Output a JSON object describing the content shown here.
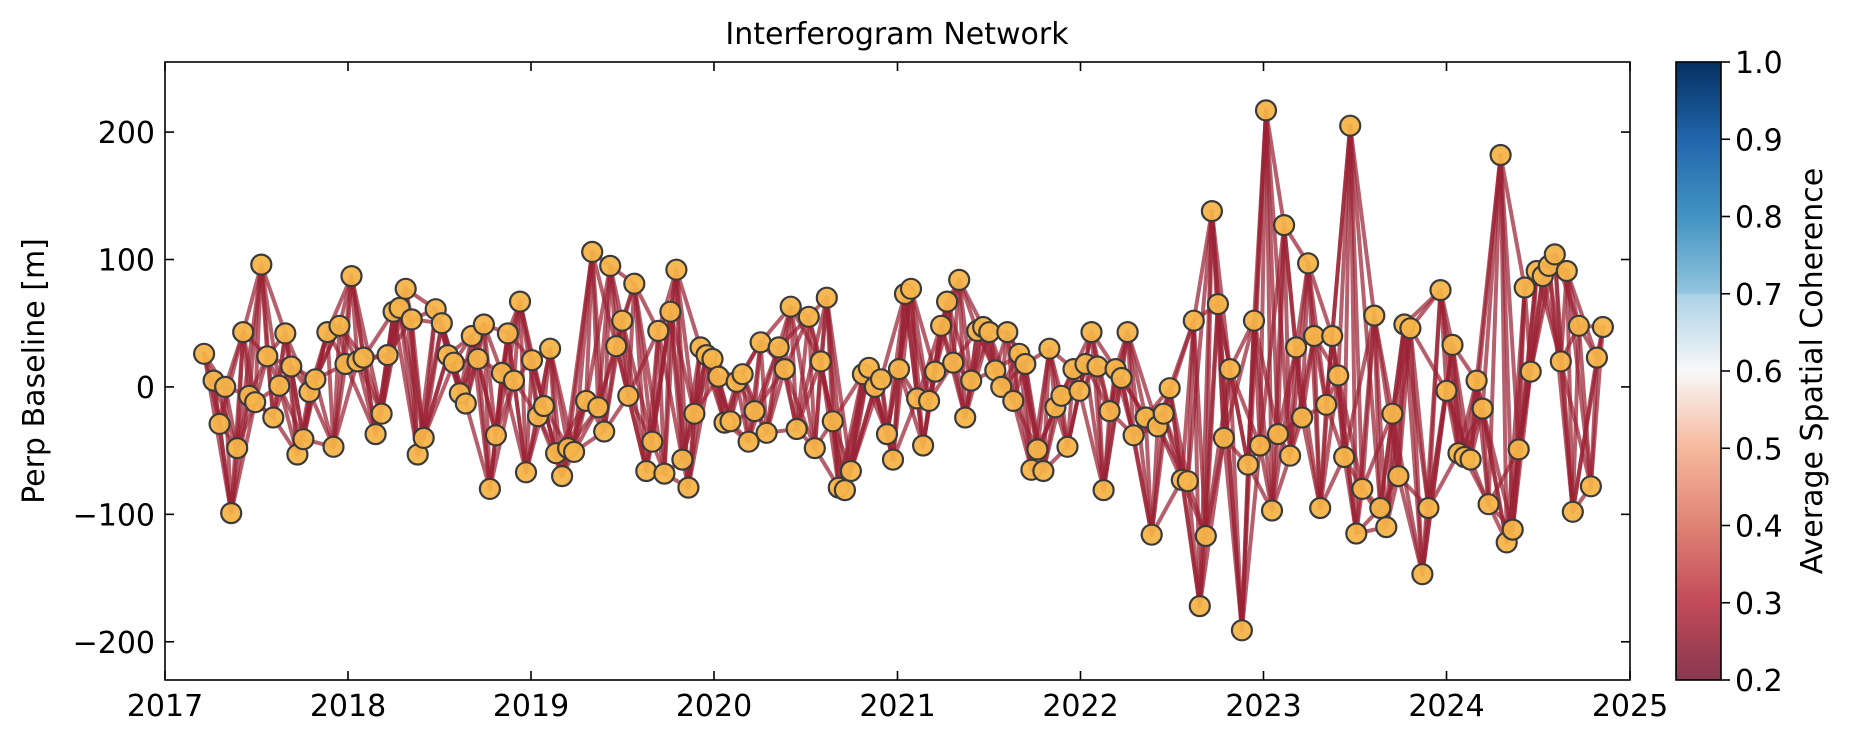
{
  "chart_data": {
    "type": "scatter",
    "title": "Interferogram Network",
    "xlabel": "",
    "ylabel": "Perp Baseline [m]",
    "x_ticks": [
      "2017",
      "2018",
      "2019",
      "2020",
      "2021",
      "2022",
      "2023",
      "2024",
      "2025"
    ],
    "y_ticks": [
      "200",
      "100",
      "0",
      "−100",
      "−200"
    ],
    "xlim": [
      "2017-01-01",
      "2025-01-01"
    ],
    "ylim": [
      -230,
      255
    ],
    "grid": false,
    "colorbar": {
      "label": "Average Spatial Coherence",
      "range": [
        0.2,
        1.0
      ],
      "ticks": [
        "1.0",
        "0.9",
        "0.8",
        "0.7",
        "0.6",
        "0.5",
        "0.4",
        "0.3",
        "0.2"
      ],
      "colormap": "RdBu",
      "masked_above": 0.7
    },
    "colors": {
      "node_fill": "#f6b44a",
      "node_edge": "#3a3a3a",
      "edge_color": "#9b2335"
    },
    "acquisitions": [
      {
        "date": "2017-03-20",
        "bperp": 26
      },
      {
        "date": "2017-04-08",
        "bperp": 5
      },
      {
        "date": "2017-04-20",
        "bperp": -29
      },
      {
        "date": "2017-05-01",
        "bperp": 0
      },
      {
        "date": "2017-05-13",
        "bperp": -99
      },
      {
        "date": "2017-05-25",
        "bperp": -48
      },
      {
        "date": "2017-06-06",
        "bperp": 43
      },
      {
        "date": "2017-06-18",
        "bperp": -7
      },
      {
        "date": "2017-06-30",
        "bperp": -12
      },
      {
        "date": "2017-07-12",
        "bperp": 96
      },
      {
        "date": "2017-07-24",
        "bperp": 24
      },
      {
        "date": "2017-08-05",
        "bperp": -24
      },
      {
        "date": "2017-08-17",
        "bperp": 1
      },
      {
        "date": "2017-08-29",
        "bperp": 42
      },
      {
        "date": "2017-09-10",
        "bperp": 16
      },
      {
        "date": "2017-09-22",
        "bperp": -53
      },
      {
        "date": "2017-10-04",
        "bperp": -41
      },
      {
        "date": "2017-10-16",
        "bperp": -4
      },
      {
        "date": "2017-10-28",
        "bperp": 6
      },
      {
        "date": "2017-11-21",
        "bperp": 43
      },
      {
        "date": "2017-12-03",
        "bperp": -47
      },
      {
        "date": "2017-12-15",
        "bperp": 48
      },
      {
        "date": "2017-12-27",
        "bperp": 18
      },
      {
        "date": "2018-01-08",
        "bperp": 87
      },
      {
        "date": "2018-01-20",
        "bperp": 20
      },
      {
        "date": "2018-02-01",
        "bperp": 23
      },
      {
        "date": "2018-02-25",
        "bperp": -37
      },
      {
        "date": "2018-03-09",
        "bperp": -21
      },
      {
        "date": "2018-03-21",
        "bperp": 25
      },
      {
        "date": "2018-04-02",
        "bperp": 59
      },
      {
        "date": "2018-04-14",
        "bperp": 62
      },
      {
        "date": "2018-04-26",
        "bperp": 77
      },
      {
        "date": "2018-05-08",
        "bperp": 53
      },
      {
        "date": "2018-05-20",
        "bperp": -53
      },
      {
        "date": "2018-06-01",
        "bperp": -40
      },
      {
        "date": "2018-06-25",
        "bperp": 61
      },
      {
        "date": "2018-07-07",
        "bperp": 50
      },
      {
        "date": "2018-07-19",
        "bperp": 25
      },
      {
        "date": "2018-07-31",
        "bperp": 19
      },
      {
        "date": "2018-08-12",
        "bperp": -5
      },
      {
        "date": "2018-08-24",
        "bperp": -13
      },
      {
        "date": "2018-09-05",
        "bperp": 40
      },
      {
        "date": "2018-09-17",
        "bperp": 22
      },
      {
        "date": "2018-09-29",
        "bperp": 49
      },
      {
        "date": "2018-10-11",
        "bperp": -80
      },
      {
        "date": "2018-10-23",
        "bperp": -38
      },
      {
        "date": "2018-11-04",
        "bperp": 11
      },
      {
        "date": "2018-11-16",
        "bperp": 42
      },
      {
        "date": "2018-11-28",
        "bperp": 5
      },
      {
        "date": "2018-12-10",
        "bperp": 67
      },
      {
        "date": "2018-12-22",
        "bperp": -67
      },
      {
        "date": "2019-01-03",
        "bperp": 21
      },
      {
        "date": "2019-01-15",
        "bperp": -23
      },
      {
        "date": "2019-01-27",
        "bperp": -15
      },
      {
        "date": "2019-02-08",
        "bperp": 30
      },
      {
        "date": "2019-02-20",
        "bperp": -52
      },
      {
        "date": "2019-03-04",
        "bperp": -70
      },
      {
        "date": "2019-03-16",
        "bperp": -48
      },
      {
        "date": "2019-03-28",
        "bperp": -51
      },
      {
        "date": "2019-04-21",
        "bperp": -11
      },
      {
        "date": "2019-05-03",
        "bperp": 106
      },
      {
        "date": "2019-05-15",
        "bperp": -16
      },
      {
        "date": "2019-05-27",
        "bperp": -35
      },
      {
        "date": "2019-06-08",
        "bperp": 95
      },
      {
        "date": "2019-06-20",
        "bperp": 32
      },
      {
        "date": "2019-07-02",
        "bperp": 52
      },
      {
        "date": "2019-07-14",
        "bperp": -7
      },
      {
        "date": "2019-07-26",
        "bperp": 81
      },
      {
        "date": "2019-08-19",
        "bperp": -66
      },
      {
        "date": "2019-08-31",
        "bperp": -43
      },
      {
        "date": "2019-09-12",
        "bperp": 44
      },
      {
        "date": "2019-09-24",
        "bperp": -68
      },
      {
        "date": "2019-10-06",
        "bperp": 59
      },
      {
        "date": "2019-10-18",
        "bperp": 92
      },
      {
        "date": "2019-10-30",
        "bperp": -57
      },
      {
        "date": "2019-11-11",
        "bperp": -79
      },
      {
        "date": "2019-11-23",
        "bperp": -21
      },
      {
        "date": "2019-12-05",
        "bperp": 31
      },
      {
        "date": "2019-12-17",
        "bperp": 25
      },
      {
        "date": "2019-12-29",
        "bperp": 22
      },
      {
        "date": "2020-01-10",
        "bperp": 8
      },
      {
        "date": "2020-01-22",
        "bperp": -28
      },
      {
        "date": "2020-02-03",
        "bperp": -27
      },
      {
        "date": "2020-02-15",
        "bperp": 4
      },
      {
        "date": "2020-02-27",
        "bperp": 10
      },
      {
        "date": "2020-03-10",
        "bperp": -43
      },
      {
        "date": "2020-03-22",
        "bperp": -19
      },
      {
        "date": "2020-04-03",
        "bperp": 35
      },
      {
        "date": "2020-04-15",
        "bperp": -36
      },
      {
        "date": "2020-05-09",
        "bperp": 31
      },
      {
        "date": "2020-05-21",
        "bperp": 14
      },
      {
        "date": "2020-06-02",
        "bperp": 63
      },
      {
        "date": "2020-06-14",
        "bperp": -33
      },
      {
        "date": "2020-07-08",
        "bperp": 55
      },
      {
        "date": "2020-07-20",
        "bperp": -48
      },
      {
        "date": "2020-08-01",
        "bperp": 20
      },
      {
        "date": "2020-08-13",
        "bperp": 70
      },
      {
        "date": "2020-08-25",
        "bperp": -27
      },
      {
        "date": "2020-09-06",
        "bperp": -79
      },
      {
        "date": "2020-09-18",
        "bperp": -81
      },
      {
        "date": "2020-09-30",
        "bperp": -66
      },
      {
        "date": "2020-10-24",
        "bperp": 10
      },
      {
        "date": "2020-11-05",
        "bperp": 15
      },
      {
        "date": "2020-11-17",
        "bperp": 0
      },
      {
        "date": "2020-11-29",
        "bperp": 6
      },
      {
        "date": "2020-12-11",
        "bperp": -37
      },
      {
        "date": "2020-12-23",
        "bperp": -57
      },
      {
        "date": "2021-01-04",
        "bperp": 14
      },
      {
        "date": "2021-01-16",
        "bperp": 73
      },
      {
        "date": "2021-01-28",
        "bperp": 77
      },
      {
        "date": "2021-02-09",
        "bperp": -9
      },
      {
        "date": "2021-02-21",
        "bperp": -46
      },
      {
        "date": "2021-03-05",
        "bperp": -11
      },
      {
        "date": "2021-03-17",
        "bperp": 12
      },
      {
        "date": "2021-03-29",
        "bperp": 48
      },
      {
        "date": "2021-04-10",
        "bperp": 67
      },
      {
        "date": "2021-04-22",
        "bperp": 19
      },
      {
        "date": "2021-05-04",
        "bperp": 84
      },
      {
        "date": "2021-05-16",
        "bperp": -24
      },
      {
        "date": "2021-05-28",
        "bperp": 5
      },
      {
        "date": "2021-06-09",
        "bperp": 44
      },
      {
        "date": "2021-06-21",
        "bperp": 47
      },
      {
        "date": "2021-07-03",
        "bperp": 43
      },
      {
        "date": "2021-07-15",
        "bperp": 13
      },
      {
        "date": "2021-07-27",
        "bperp": 0
      },
      {
        "date": "2021-08-08",
        "bperp": 43
      },
      {
        "date": "2021-08-20",
        "bperp": -11
      },
      {
        "date": "2021-09-01",
        "bperp": 26
      },
      {
        "date": "2021-09-13",
        "bperp": 18
      },
      {
        "date": "2021-09-25",
        "bperp": -65
      },
      {
        "date": "2021-10-07",
        "bperp": -49
      },
      {
        "date": "2021-10-19",
        "bperp": -66
      },
      {
        "date": "2021-10-31",
        "bperp": 30
      },
      {
        "date": "2021-11-12",
        "bperp": -16
      },
      {
        "date": "2021-11-24",
        "bperp": -7
      },
      {
        "date": "2021-12-06",
        "bperp": -47
      },
      {
        "date": "2021-12-18",
        "bperp": 14
      },
      {
        "date": "2021-12-30",
        "bperp": -3
      },
      {
        "date": "2022-01-11",
        "bperp": 18
      },
      {
        "date": "2022-01-23",
        "bperp": 43
      },
      {
        "date": "2022-02-04",
        "bperp": 16
      },
      {
        "date": "2022-02-16",
        "bperp": -81
      },
      {
        "date": "2022-02-28",
        "bperp": -19
      },
      {
        "date": "2022-03-12",
        "bperp": 14
      },
      {
        "date": "2022-03-24",
        "bperp": 7
      },
      {
        "date": "2022-04-05",
        "bperp": 43
      },
      {
        "date": "2022-04-17",
        "bperp": -38
      },
      {
        "date": "2022-05-11",
        "bperp": -24
      },
      {
        "date": "2022-05-23",
        "bperp": -116
      },
      {
        "date": "2022-06-04",
        "bperp": -31
      },
      {
        "date": "2022-06-16",
        "bperp": -21
      },
      {
        "date": "2022-06-28",
        "bperp": -1
      },
      {
        "date": "2022-07-22",
        "bperp": -73
      },
      {
        "date": "2022-08-03",
        "bperp": -74
      },
      {
        "date": "2022-08-15",
        "bperp": 52
      },
      {
        "date": "2022-08-27",
        "bperp": -172
      },
      {
        "date": "2022-09-08",
        "bperp": -117
      },
      {
        "date": "2022-09-20",
        "bperp": 138
      },
      {
        "date": "2022-10-02",
        "bperp": 65
      },
      {
        "date": "2022-10-14",
        "bperp": -40
      },
      {
        "date": "2022-10-26",
        "bperp": 14
      },
      {
        "date": "2022-11-19",
        "bperp": -191
      },
      {
        "date": "2022-12-01",
        "bperp": -61
      },
      {
        "date": "2022-12-13",
        "bperp": 52
      },
      {
        "date": "2022-12-25",
        "bperp": -46
      },
      {
        "date": "2023-01-06",
        "bperp": 217
      },
      {
        "date": "2023-01-18",
        "bperp": -97
      },
      {
        "date": "2023-01-30",
        "bperp": -37
      },
      {
        "date": "2023-02-11",
        "bperp": 127
      },
      {
        "date": "2023-02-23",
        "bperp": -54
      },
      {
        "date": "2023-03-07",
        "bperp": 31
      },
      {
        "date": "2023-03-19",
        "bperp": -24
      },
      {
        "date": "2023-03-31",
        "bperp": 97
      },
      {
        "date": "2023-04-12",
        "bperp": 40
      },
      {
        "date": "2023-04-24",
        "bperp": -95
      },
      {
        "date": "2023-05-06",
        "bperp": -14
      },
      {
        "date": "2023-05-18",
        "bperp": 40
      },
      {
        "date": "2023-05-30",
        "bperp": 9
      },
      {
        "date": "2023-06-11",
        "bperp": -55
      },
      {
        "date": "2023-06-23",
        "bperp": 205
      },
      {
        "date": "2023-07-05",
        "bperp": -115
      },
      {
        "date": "2023-07-17",
        "bperp": -80
      },
      {
        "date": "2023-08-10",
        "bperp": 56
      },
      {
        "date": "2023-08-22",
        "bperp": -95
      },
      {
        "date": "2023-09-03",
        "bperp": -110
      },
      {
        "date": "2023-09-15",
        "bperp": -21
      },
      {
        "date": "2023-09-27",
        "bperp": -70
      },
      {
        "date": "2023-10-09",
        "bperp": 49
      },
      {
        "date": "2023-10-21",
        "bperp": 46
      },
      {
        "date": "2023-11-14",
        "bperp": -147
      },
      {
        "date": "2023-11-26",
        "bperp": -95
      },
      {
        "date": "2023-12-20",
        "bperp": 76
      },
      {
        "date": "2024-01-01",
        "bperp": -3
      },
      {
        "date": "2024-01-13",
        "bperp": 33
      },
      {
        "date": "2024-01-25",
        "bperp": -52
      },
      {
        "date": "2024-02-06",
        "bperp": -55
      },
      {
        "date": "2024-02-18",
        "bperp": -57
      },
      {
        "date": "2024-03-01",
        "bperp": 5
      },
      {
        "date": "2024-03-13",
        "bperp": -17
      },
      {
        "date": "2024-03-25",
        "bperp": -92
      },
      {
        "date": "2024-04-18",
        "bperp": 182
      },
      {
        "date": "2024-04-30",
        "bperp": -122
      },
      {
        "date": "2024-05-12",
        "bperp": -112
      },
      {
        "date": "2024-05-24",
        "bperp": -49
      },
      {
        "date": "2024-06-05",
        "bperp": 78
      },
      {
        "date": "2024-06-17",
        "bperp": 12
      },
      {
        "date": "2024-06-29",
        "bperp": 91
      },
      {
        "date": "2024-07-11",
        "bperp": 87
      },
      {
        "date": "2024-07-23",
        "bperp": 95
      },
      {
        "date": "2024-08-04",
        "bperp": 104
      },
      {
        "date": "2024-08-16",
        "bperp": 20
      },
      {
        "date": "2024-08-28",
        "bperp": 91
      },
      {
        "date": "2024-09-09",
        "bperp": -98
      },
      {
        "date": "2024-09-21",
        "bperp": 48
      },
      {
        "date": "2024-10-15",
        "bperp": -78
      },
      {
        "date": "2024-10-27",
        "bperp": 23
      },
      {
        "date": "2024-11-08",
        "bperp": 47
      }
    ]
  }
}
